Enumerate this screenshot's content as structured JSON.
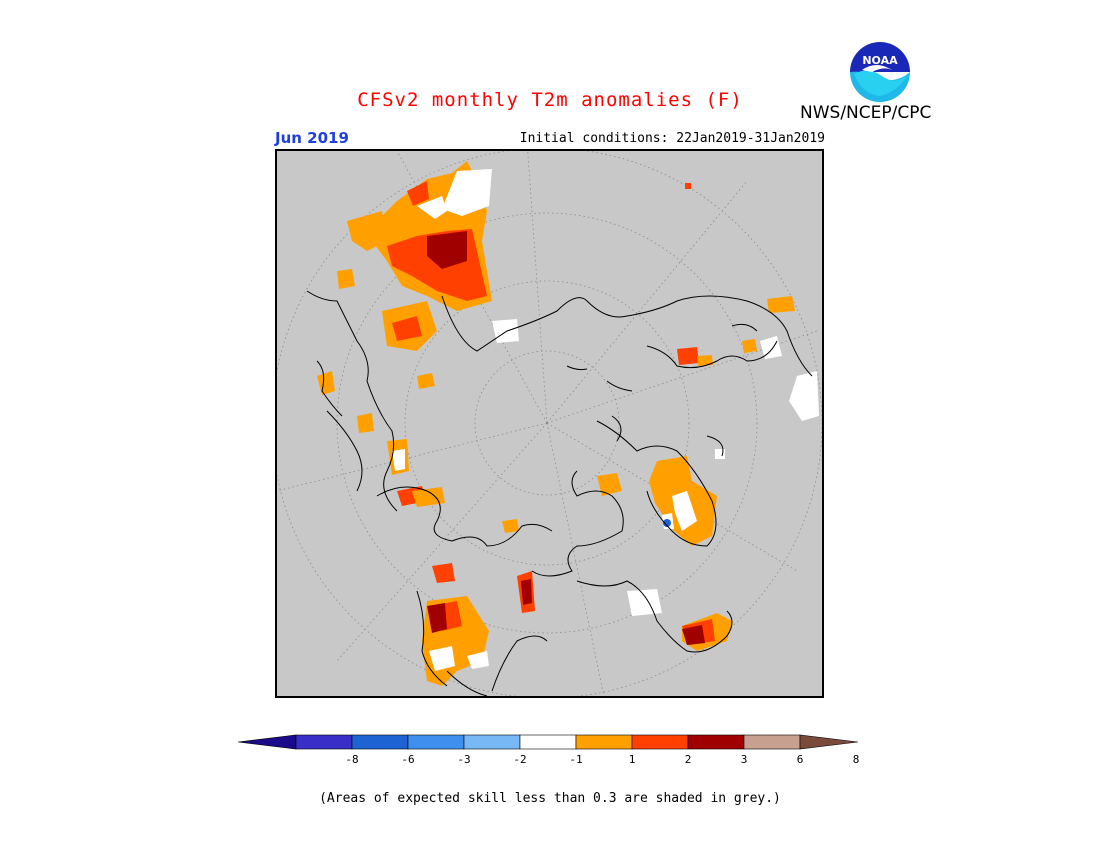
{
  "header": {
    "title": "CFSv2 monthly T2m anomalies (F)",
    "org": "NWS/NCEP/CPC",
    "logo_text": "NOAA",
    "valid_month": "Jun 2019",
    "initial_conditions": "Initial conditions: 22Jan2019-31Jan2019"
  },
  "map": {
    "projection": "north polar stereographic",
    "background_color": "#c8c8c8",
    "grid_color": "#888888"
  },
  "legend": {
    "tick_labels": [
      "-8",
      "-6",
      "-3",
      "-2",
      "-1",
      "1",
      "2",
      "3",
      "6",
      "8"
    ],
    "bins": [
      {
        "label": "< -8",
        "color": "#1a0a8c"
      },
      {
        "label": "-8 to -6",
        "color": "#3a2ec8"
      },
      {
        "label": "-6 to -3",
        "color": "#1d63d4"
      },
      {
        "label": "-3 to -2",
        "color": "#3f8fee"
      },
      {
        "label": "-2 to -1",
        "color": "#78b8f4"
      },
      {
        "label": "-1 to 1",
        "color": "#ffffff"
      },
      {
        "label": "1 to 2",
        "color": "#ffa000"
      },
      {
        "label": "2 to 3",
        "color": "#ff4000"
      },
      {
        "label": "3 to 6",
        "color": "#a00000"
      },
      {
        "label": "6 to 8",
        "color": "#c8a090"
      },
      {
        "label": "> 8",
        "color": "#7a4a3a"
      }
    ]
  },
  "footnote": "(Areas of expected skill less than 0.3 are shaded in grey.)"
}
